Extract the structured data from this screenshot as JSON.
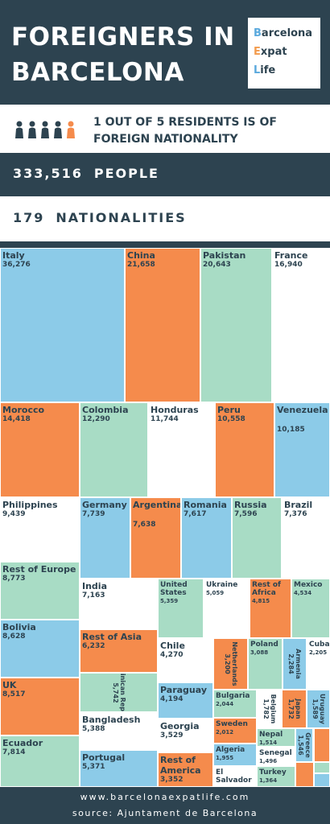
{
  "header": {
    "title_line1": "FOREIGNERS IN",
    "title_line2": "BARCELONA",
    "logo": {
      "l1_first": "B",
      "l1_rest": "arcelona",
      "l2_first": "E",
      "l2_rest": "xpat",
      "l3_first": "L",
      "l3_rest": "ife"
    }
  },
  "tagline_line1": "1 OUT OF 5 RESIDENTS IS OF",
  "tagline_line2": "FOREIGN NATIONALITY",
  "stats": {
    "people_number": "333,516",
    "people_label": "PEOPLE",
    "nationalities_number": "179",
    "nationalities_label": "NATIONALITIES"
  },
  "colors": {
    "blue": "#8ccbe8",
    "orange": "#f58b4c",
    "green": "#a8dcc5",
    "white": "#ffffff",
    "dark": "#2d4350"
  },
  "treemap": [
    {
      "name": "Italy",
      "value": "36,276",
      "color": "blue"
    },
    {
      "name": "China",
      "value": "21,658",
      "color": "orange"
    },
    {
      "name": "Pakistan",
      "value": "20,643",
      "color": "green"
    },
    {
      "name": "France",
      "value": "16,940",
      "color": "white"
    },
    {
      "name": "Morocco",
      "value": "14,418",
      "color": "orange"
    },
    {
      "name": "Colombia",
      "value": "12,290",
      "color": "green"
    },
    {
      "name": "Honduras",
      "value": "11,744",
      "color": "white"
    },
    {
      "name": "Peru",
      "value": "10,558",
      "color": "orange"
    },
    {
      "name": "Venezuela",
      "value": "10,185",
      "color": "blue"
    },
    {
      "name": "Philippines",
      "value": "9,439",
      "color": "white"
    },
    {
      "name": "Germany",
      "value": "7,739",
      "color": "blue"
    },
    {
      "name": "Argentina",
      "value": "7,638",
      "color": "orange"
    },
    {
      "name": "Romania",
      "value": "7,617",
      "color": "blue"
    },
    {
      "name": "Russia",
      "value": "7,596",
      "color": "green"
    },
    {
      "name": "Brazil",
      "value": "7,376",
      "color": "white"
    },
    {
      "name": "Rest of Europe",
      "value": "8,773",
      "color": "green"
    },
    {
      "name": "India",
      "value": "7,163",
      "color": "white"
    },
    {
      "name": "United States",
      "value": "5,359",
      "color": "green"
    },
    {
      "name": "Ukraine",
      "value": "5,059",
      "color": "white"
    },
    {
      "name": "Rest of Africa",
      "value": "4,815",
      "color": "orange"
    },
    {
      "name": "Mexico",
      "value": "4,534",
      "color": "green"
    },
    {
      "name": "Bolivia",
      "value": "8,628",
      "color": "blue"
    },
    {
      "name": "Rest of Asia",
      "value": "6,232",
      "color": "orange"
    },
    {
      "name": "Chile",
      "value": "4,270",
      "color": "white"
    },
    {
      "name": "Netherlands",
      "value": "3,200",
      "color": "orange"
    },
    {
      "name": "Poland",
      "value": "3,088",
      "color": "green"
    },
    {
      "name": "Armenia",
      "value": "2,284",
      "color": "blue"
    },
    {
      "name": "Cuba",
      "value": "2,205",
      "color": "white"
    },
    {
      "name": "UK",
      "value": "8,517",
      "color": "orange"
    },
    {
      "name": "Dominican Republic",
      "value": "5,742",
      "color": "green"
    },
    {
      "name": "Paraguay",
      "value": "4,194",
      "color": "blue"
    },
    {
      "name": "Bulgaria",
      "value": "2,044",
      "color": "green"
    },
    {
      "name": "Belgium",
      "value": "1,782",
      "color": "white"
    },
    {
      "name": "Japan",
      "value": "1,732",
      "color": "orange"
    },
    {
      "name": "Uruguay",
      "value": "1,589",
      "color": "blue"
    },
    {
      "name": "Bangladesh",
      "value": "5,388",
      "color": "white"
    },
    {
      "name": "Sweden",
      "value": "2,012",
      "color": "orange"
    },
    {
      "name": "Nepal",
      "value": "1,514",
      "color": "green"
    },
    {
      "name": "Greece",
      "value": "1,546",
      "color": "blue"
    },
    {
      "name": "Ecuador",
      "value": "7,814",
      "color": "green"
    },
    {
      "name": "Georgia",
      "value": "3,529",
      "color": "white"
    },
    {
      "name": "Algeria",
      "value": "1,955",
      "color": "blue"
    },
    {
      "name": "Senegal",
      "value": "1,496",
      "color": "white"
    },
    {
      "name": "Portugal",
      "value": "5,371",
      "color": "blue"
    },
    {
      "name": "Rest of America",
      "value": "3,352",
      "color": "orange"
    },
    {
      "name": "El Salvador",
      "value": "1,886",
      "color": "white"
    },
    {
      "name": "Turkey",
      "value": "1,364",
      "color": "green"
    },
    {
      "name": "",
      "value": "",
      "color": "orange"
    },
    {
      "name": "",
      "value": "",
      "color": "orange"
    },
    {
      "name": "",
      "value": "",
      "color": "green"
    },
    {
      "name": "",
      "value": "",
      "color": "blue"
    }
  ],
  "footer": {
    "website": "www.barcelonaexpatlife.com",
    "source": "source: Ajuntament de Barcelona"
  }
}
